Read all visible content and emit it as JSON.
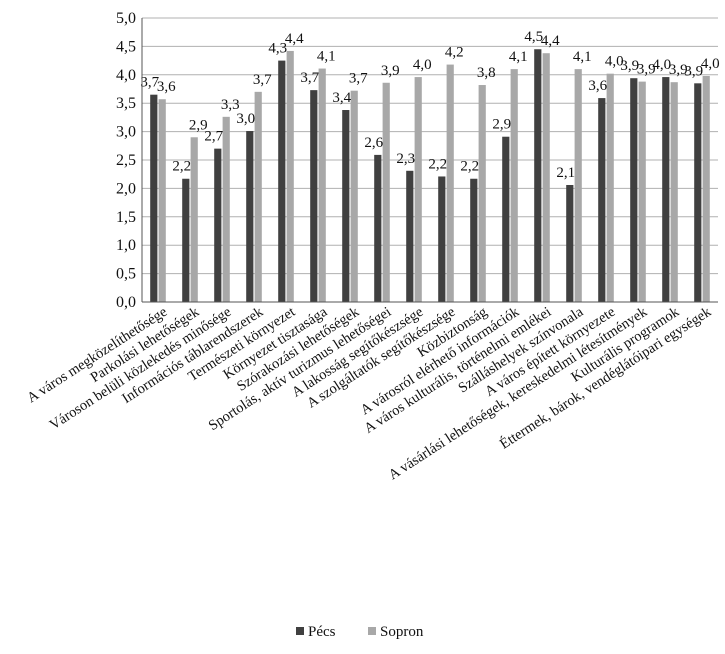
{
  "chart_data": {
    "type": "bar",
    "title": "",
    "xlabel": "",
    "ylabel": "",
    "ylim": [
      0,
      5
    ],
    "yticks": [
      "0,0",
      "0,5",
      "1,0",
      "1,5",
      "2,0",
      "2,5",
      "3,0",
      "3,5",
      "4,0",
      "4,5",
      "5,0"
    ],
    "grid": "horizontal",
    "legend_position": "bottom",
    "categories": [
      "A város megközelíthetősége",
      "Parkolási lehetőségek",
      "Városon belüli közlekedés minősége",
      "Információs táblarendszerek",
      "Természeti környezet",
      "Környezet tisztasága",
      "Szórakozási lehetőségek",
      "Sportolás, aktív turizmus lehetőségei",
      "A lakosság segítőkészsége",
      "A szolgáltatók segítőkészsége",
      "Közbiztonság",
      "A városról elérhető információk",
      "A város kulturális, történelmi emlékei",
      "Szálláshelyek színvonala",
      "A város épített környezete",
      "A vásárlási lehetőségek, kereskedelmi létesítmények",
      "Kulturális programok",
      "Éttermek, bárok, vendéglátóipari egységek"
    ],
    "series": [
      {
        "name": "Pécs",
        "color": "#404040",
        "values": [
          3.65,
          2.17,
          2.7,
          3.01,
          4.25,
          3.73,
          3.38,
          2.59,
          2.31,
          2.21,
          2.17,
          2.91,
          4.45,
          2.06,
          3.59,
          3.94,
          3.96,
          3.85
        ],
        "labels": [
          "3,7",
          "2,2",
          "2,7",
          "3,0",
          "4,3",
          "3,7",
          "3,4",
          "2,6",
          "2,3",
          "2,2",
          "2,2",
          "2,9",
          "4,5",
          "2,1",
          "3,6",
          "3,9",
          "4,0",
          "3,9"
        ]
      },
      {
        "name": "Sopron",
        "color": "#a8a8a8",
        "values": [
          3.57,
          2.9,
          3.26,
          3.7,
          4.42,
          4.11,
          3.72,
          3.86,
          3.96,
          4.18,
          3.82,
          4.1,
          4.38,
          4.1,
          4.02,
          3.88,
          3.87,
          3.98
        ],
        "labels": [
          "3,6",
          "2,9",
          "3,3",
          "3,7",
          "4,4",
          "4,1",
          "3,7",
          "3,9",
          "4,0",
          "4,2",
          "3,8",
          "4,1",
          "4,4",
          "4,1",
          "4,0",
          "3,9",
          "3,9",
          "4,0"
        ]
      }
    ]
  }
}
